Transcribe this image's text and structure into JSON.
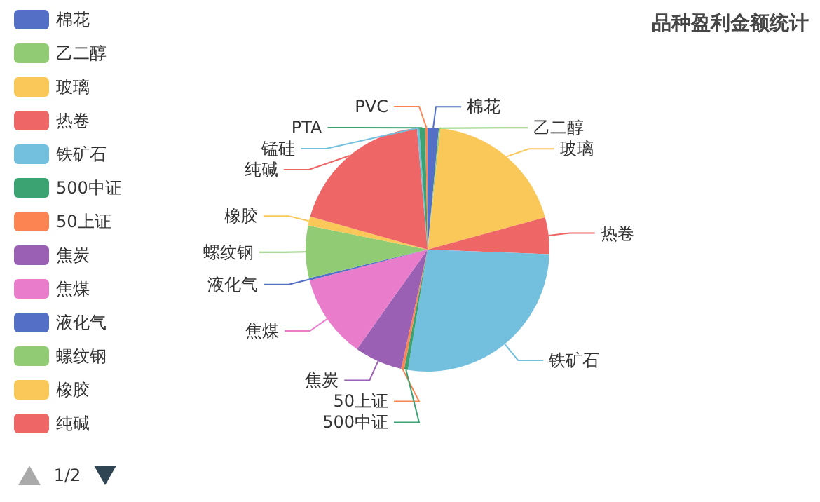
{
  "chart_data": {
    "type": "pie",
    "title": "品种盈利金额统计",
    "legend": "top left",
    "annotations": [
      "1/2"
    ],
    "categories": [
      "棉花",
      "乙二醇",
      "玻璃",
      "热卷",
      "铁矿石",
      "500中证",
      "50上证",
      "焦炭",
      "焦煤",
      "液化气",
      "螺纹钢",
      "橡胶",
      "纯碱",
      "锰硅",
      "PTA",
      "PVC"
    ],
    "values": [
      1.5,
      0.2,
      19.2,
      4.9,
      27.2,
      0.5,
      0.4,
      6.4,
      11.2,
      0.3,
      7,
      1.2,
      19.4,
      0.3,
      0.8,
      0.3
    ],
    "colors": [
      "#5470c6",
      "#91cc75",
      "#fac858",
      "#ee6666",
      "#73c0de",
      "#3ba272",
      "#fc8452",
      "#9a60b4",
      "#ea7ccc",
      "#5470c6",
      "#91cc75",
      "#fac858",
      "#ee6666",
      "#73c0de",
      "#3ba272",
      "#fc8452"
    ]
  }
}
